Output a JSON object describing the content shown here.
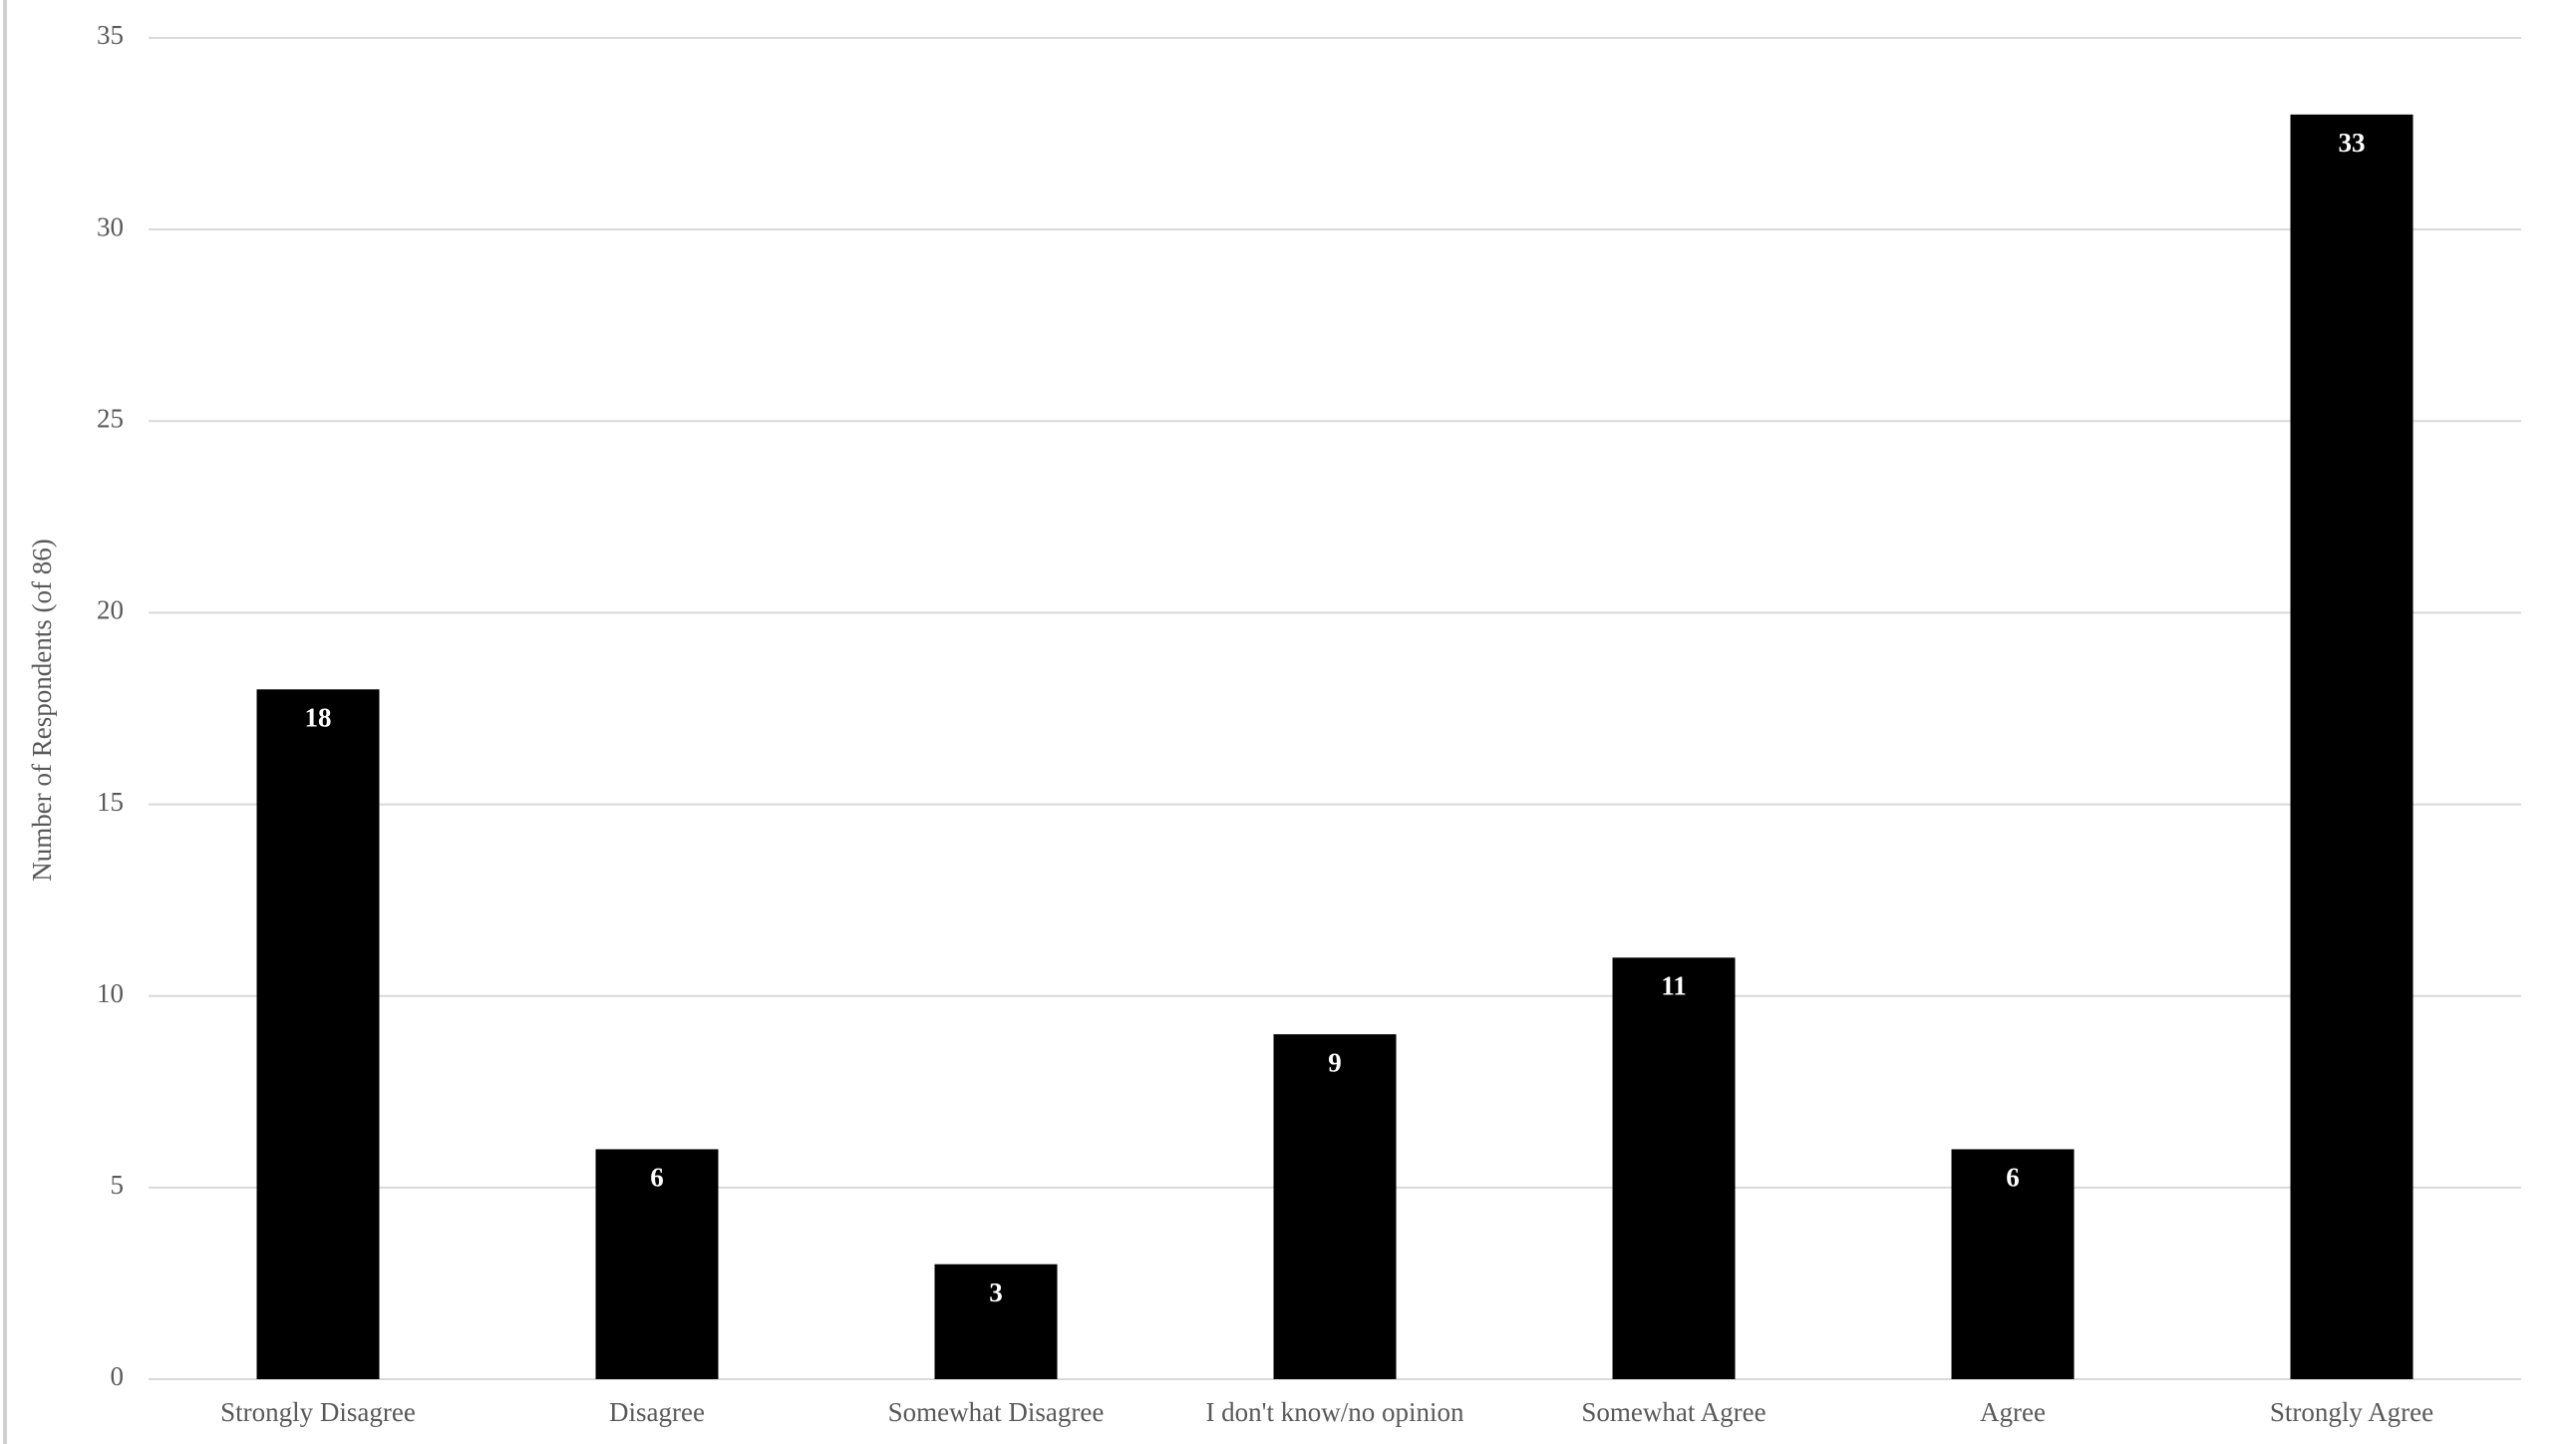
{
  "chart_data": {
    "type": "bar",
    "y_axis_label": "Number of Respondents (of 86)",
    "categories": [
      "Strongly Disagree",
      "Disagree",
      "Somewhat Disagree",
      "I don't know/no opinion",
      "Somewhat Agree",
      "Agree",
      "Strongly Agree"
    ],
    "values": [
      18,
      6,
      3,
      9,
      11,
      6,
      33
    ],
    "color": "#000000",
    "ylim": [
      0,
      35
    ],
    "yticks": [
      0,
      5,
      10,
      15,
      20,
      25,
      30,
      35
    ],
    "grid": true
  }
}
